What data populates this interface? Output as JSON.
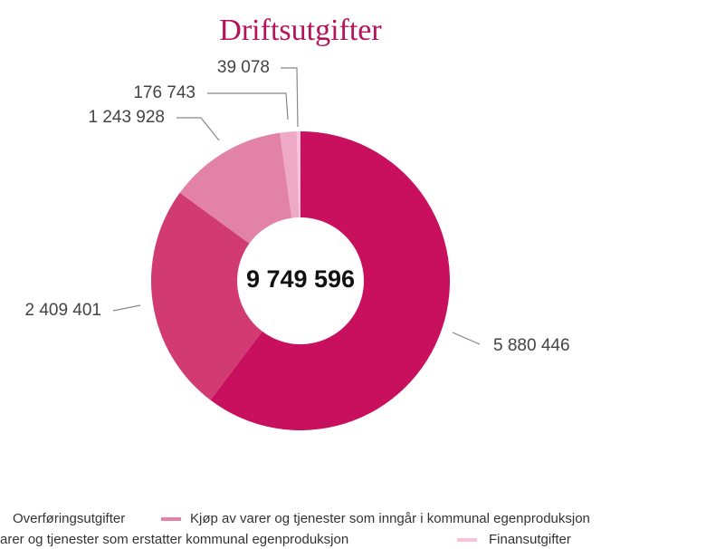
{
  "chart_data": {
    "type": "donut",
    "title": "Driftsutgifter",
    "center_label": "9 749 596",
    "categories": [
      null,
      "Overføringsutgifter",
      "Kjøp av varer og tjenester som inngår i kommunal egenproduksjon",
      "arer og tjenester som erstatter kommunal egenproduksjon",
      "Finansutgifter"
    ],
    "values": [
      5880446,
      2409401,
      1243928,
      176743,
      39078
    ],
    "value_labels": [
      "5 880 446",
      "2 409 401",
      "1 243 928",
      "176 743",
      "39 078"
    ],
    "colors": [
      "#c8105f",
      "#d23a72",
      "#e282a6",
      "#eea9c6",
      "#f7c4da"
    ]
  }
}
